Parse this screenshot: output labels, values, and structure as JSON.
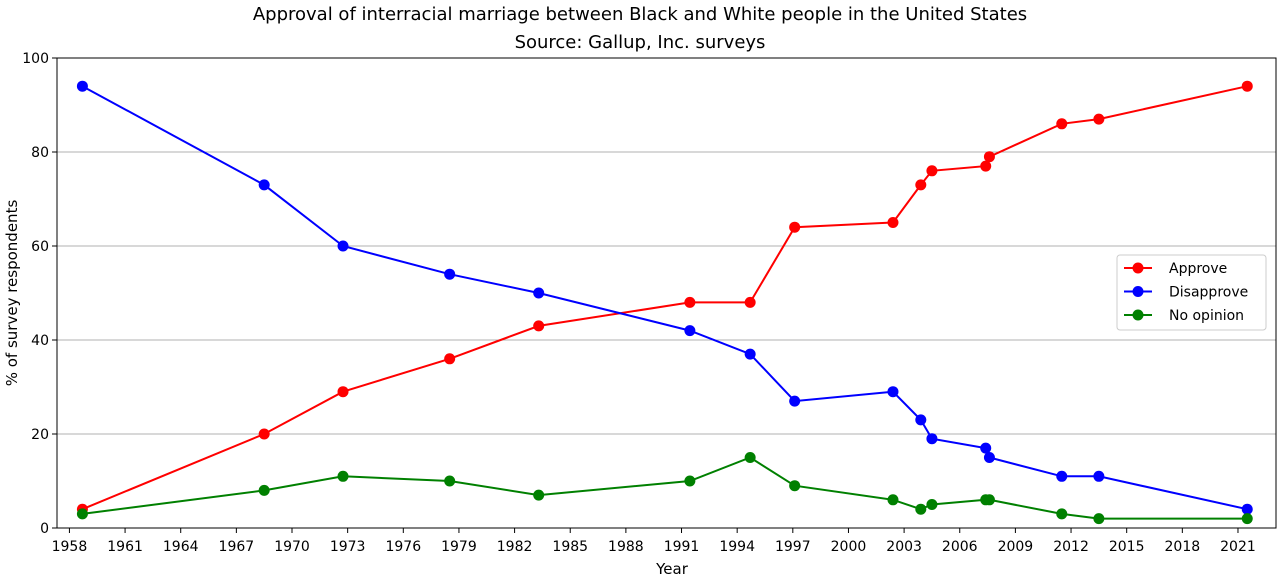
{
  "chart_data": {
    "type": "line",
    "title": "Approval of interracial marriage between Black and White people in the United States",
    "subtitle": "Source: Gallup, Inc. surveys",
    "xlabel": "Year",
    "ylabel": "% of survey respondents",
    "xlim": [
      1957.33,
      2023.05
    ],
    "ylim": [
      0,
      100
    ],
    "xticks": [
      1958,
      1961,
      1964,
      1967,
      1970,
      1973,
      1976,
      1979,
      1982,
      1985,
      1988,
      1991,
      1994,
      1997,
      2000,
      2003,
      2006,
      2009,
      2012,
      2015,
      2018,
      2021
    ],
    "yticks": [
      0,
      20,
      40,
      60,
      80,
      100
    ],
    "grid": "horizontal",
    "legend_position": "center-right",
    "x": [
      1958.7,
      1968.5,
      1972.75,
      1978.5,
      1983.3,
      1991.45,
      1994.7,
      1997.1,
      2002.4,
      2003.9,
      2004.5,
      2007.4,
      2007.6,
      2011.5,
      2013.5,
      2021.5
    ],
    "series": [
      {
        "name": "Approve",
        "color": "#ff0000",
        "values": [
          4,
          20,
          29,
          36,
          43,
          48,
          48,
          64,
          65,
          73,
          76,
          77,
          79,
          86,
          87,
          94
        ]
      },
      {
        "name": "Disapprove",
        "color": "#0000ff",
        "values": [
          94,
          73,
          60,
          54,
          50,
          42,
          37,
          27,
          29,
          23,
          19,
          17,
          15,
          11,
          11,
          4
        ]
      },
      {
        "name": "No opinion",
        "color": "#008000",
        "values": [
          3,
          8,
          11,
          10,
          7,
          10,
          15,
          9,
          6,
          4,
          5,
          6,
          6,
          3,
          2,
          2
        ]
      }
    ]
  }
}
